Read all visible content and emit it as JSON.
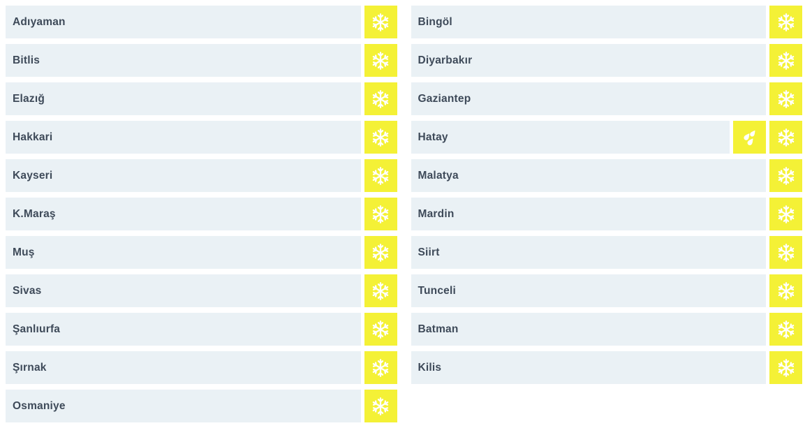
{
  "app": {
    "description": "province-weather-warning-list"
  },
  "colors": {
    "page_bg": "#ffffff",
    "row_bg": "#eaf1f5",
    "tile_yellow": "#f4f136",
    "text": "#3e4a59",
    "icon": "#ffffff"
  },
  "icons": {
    "snowflake-icon": "snow",
    "rain-icon": "rain"
  },
  "columns": [
    {
      "items": [
        {
          "name": "Adıyaman",
          "icons": [
            "snowflake-icon"
          ]
        },
        {
          "name": "Bitlis",
          "icons": [
            "snowflake-icon"
          ]
        },
        {
          "name": "Elazığ",
          "icons": [
            "snowflake-icon"
          ]
        },
        {
          "name": "Hakkari",
          "icons": [
            "snowflake-icon"
          ]
        },
        {
          "name": "Kayseri",
          "icons": [
            "snowflake-icon"
          ]
        },
        {
          "name": "K.Maraş",
          "icons": [
            "snowflake-icon"
          ]
        },
        {
          "name": "Muş",
          "icons": [
            "snowflake-icon"
          ]
        },
        {
          "name": "Sivas",
          "icons": [
            "snowflake-icon"
          ]
        },
        {
          "name": "Şanlıurfa",
          "icons": [
            "snowflake-icon"
          ]
        },
        {
          "name": "Şırnak",
          "icons": [
            "snowflake-icon"
          ]
        },
        {
          "name": "Osmaniye",
          "icons": [
            "snowflake-icon"
          ]
        }
      ]
    },
    {
      "items": [
        {
          "name": "Bingöl",
          "icons": [
            "snowflake-icon"
          ]
        },
        {
          "name": "Diyarbakır",
          "icons": [
            "snowflake-icon"
          ]
        },
        {
          "name": "Gaziantep",
          "icons": [
            "snowflake-icon"
          ]
        },
        {
          "name": "Hatay",
          "icons": [
            "rain-icon",
            "snowflake-icon"
          ]
        },
        {
          "name": "Malatya",
          "icons": [
            "snowflake-icon"
          ]
        },
        {
          "name": "Mardin",
          "icons": [
            "snowflake-icon"
          ]
        },
        {
          "name": "Siirt",
          "icons": [
            "snowflake-icon"
          ]
        },
        {
          "name": "Tunceli",
          "icons": [
            "snowflake-icon"
          ]
        },
        {
          "name": "Batman",
          "icons": [
            "snowflake-icon"
          ]
        },
        {
          "name": "Kilis",
          "icons": [
            "snowflake-icon"
          ]
        }
      ]
    }
  ]
}
